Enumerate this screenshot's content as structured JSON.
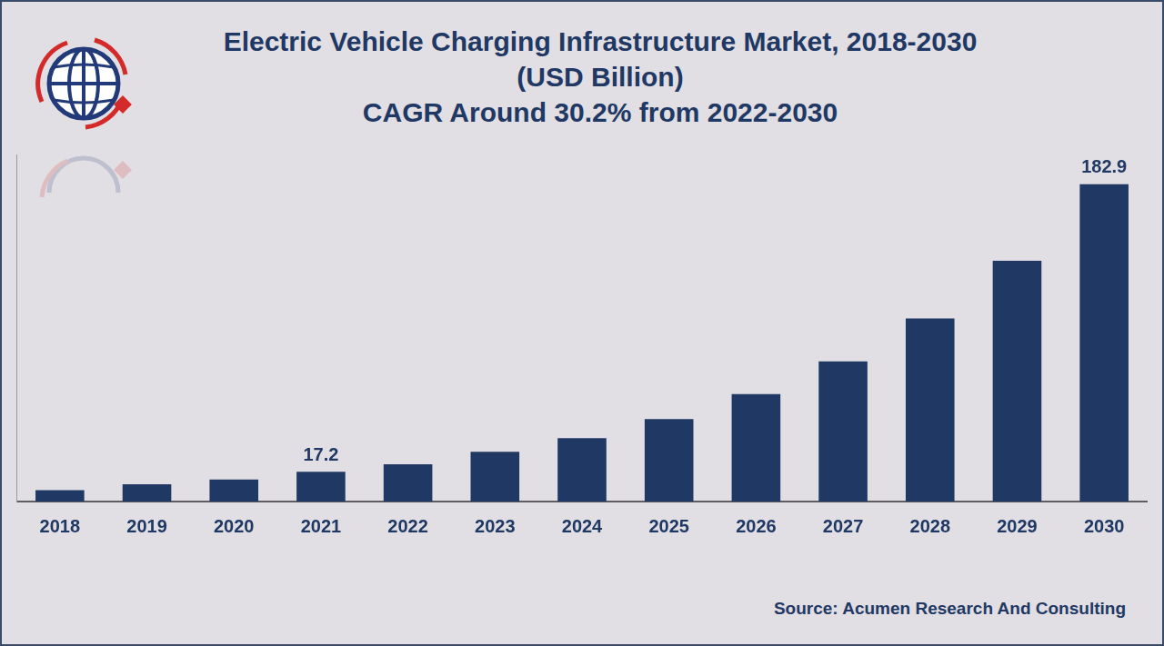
{
  "chart_data": {
    "type": "bar",
    "title": [
      "Electric Vehicle Charging Infrastructure Market, 2018-2030",
      "(USD Billion)",
      "CAGR Around 30.2% from 2022-2030"
    ],
    "source": "Source: Acumen Research And Consulting",
    "categories": [
      "2018",
      "2019",
      "2020",
      "2021",
      "2022",
      "2023",
      "2024",
      "2025",
      "2026",
      "2027",
      "2028",
      "2029",
      "2030"
    ],
    "values": [
      6.6,
      9.9,
      12.7,
      17.2,
      21.5,
      28.7,
      36.5,
      47.5,
      61.9,
      80.7,
      105.5,
      138.7,
      182.9
    ],
    "value_labels": [
      null,
      null,
      null,
      "17.2",
      null,
      null,
      null,
      null,
      null,
      null,
      null,
      null,
      "182.9"
    ],
    "color": "#1f3864",
    "ylim": [
      0,
      200
    ],
    "grid": false,
    "tick_labels": "x"
  }
}
